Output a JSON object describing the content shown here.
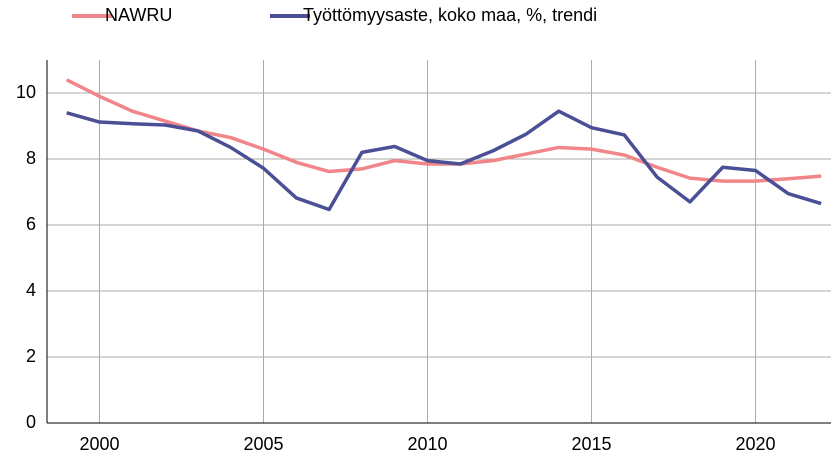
{
  "chart_data": {
    "type": "line",
    "x": [
      1999,
      2000,
      2001,
      2002,
      2003,
      2004,
      2005,
      2006,
      2007,
      2008,
      2009,
      2010,
      2011,
      2012,
      2013,
      2014,
      2015,
      2016,
      2017,
      2018,
      2019,
      2020,
      2021,
      2022
    ],
    "series": [
      {
        "name": "NAWRU",
        "color": "#f0868a",
        "values": [
          10.4,
          9.9,
          9.45,
          9.15,
          8.85,
          8.65,
          8.3,
          7.9,
          7.62,
          7.7,
          7.95,
          7.85,
          7.85,
          7.95,
          8.15,
          8.35,
          8.3,
          8.12,
          7.75,
          7.42,
          7.33,
          7.33,
          7.4,
          7.48
        ]
      },
      {
        "name": "Työttömyysaste, koko maa, %, trendi",
        "color": "#4a4f96",
        "values": [
          9.4,
          9.12,
          9.07,
          9.03,
          8.85,
          8.35,
          7.72,
          6.82,
          6.47,
          8.2,
          8.38,
          7.95,
          7.85,
          8.25,
          8.75,
          9.45,
          8.95,
          8.73,
          7.45,
          6.7,
          7.75,
          7.65,
          6.95,
          6.65
        ]
      }
    ],
    "xlim": [
      1998.4,
      2022.3
    ],
    "xticks": [
      2000,
      2005,
      2010,
      2015,
      2020
    ],
    "ylim": [
      0,
      11
    ],
    "yticks": [
      0,
      2,
      4,
      6,
      8,
      10
    ],
    "grid": true,
    "legend": "top"
  }
}
